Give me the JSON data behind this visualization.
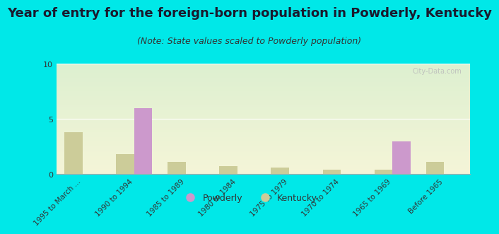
{
  "title": "Year of entry for the foreign-born population in Powderly, Kentucky",
  "subtitle": "(Note: State values scaled to Powderly population)",
  "categories": [
    "1995 to March ...",
    "1990 to 1994",
    "1985 to 1989",
    "1980 to 1984",
    "1975 to 1979",
    "1970 to 1974",
    "1965 to 1969",
    "Before 1965"
  ],
  "powderly_values": [
    0,
    6.0,
    0,
    0,
    0,
    0,
    3.0,
    0
  ],
  "kentucky_values": [
    3.8,
    1.8,
    1.1,
    0.7,
    0.6,
    0.4,
    0.4,
    1.1
  ],
  "powderly_color": "#cc99cc",
  "kentucky_color": "#cccc99",
  "background_color": "#00e8e8",
  "plot_bg_top": "#ddf0d0",
  "plot_bg_bottom": "#f5f5d8",
  "ylim": [
    0,
    10
  ],
  "yticks": [
    0,
    5,
    10
  ],
  "bar_width": 0.35,
  "title_fontsize": 13,
  "subtitle_fontsize": 9,
  "watermark": "City-Data.com"
}
